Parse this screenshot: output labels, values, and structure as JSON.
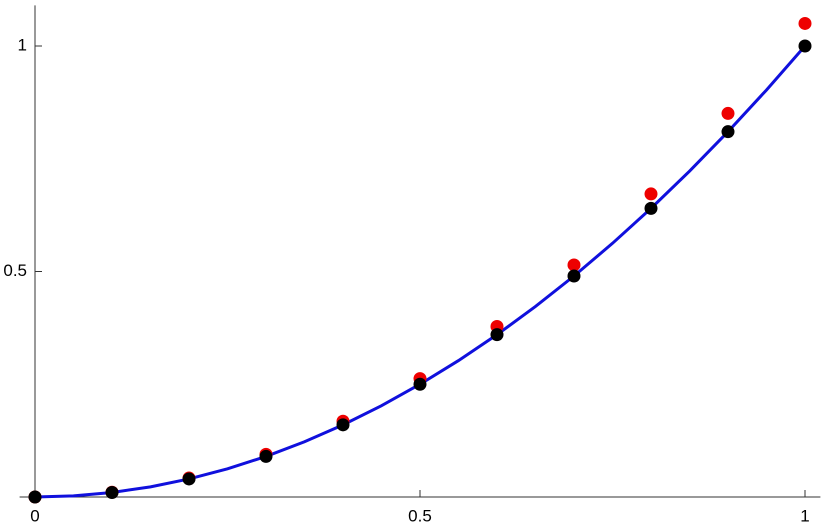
{
  "chart_data": {
    "type": "scatter",
    "x": [
      0,
      0.1,
      0.2,
      0.3,
      0.4,
      0.5,
      0.6,
      0.7,
      0.8,
      0.9,
      1.0
    ],
    "series": [
      {
        "color": "#ee0000",
        "values": [
          0,
          0.0105,
          0.042,
          0.0945,
          0.168,
          0.2625,
          0.378,
          0.5145,
          0.672,
          0.8505,
          1.05
        ]
      },
      {
        "color": "#000000",
        "values": [
          0,
          0.01,
          0.04,
          0.09,
          0.16,
          0.25,
          0.36,
          0.49,
          0.64,
          0.81,
          1.0
        ]
      }
    ],
    "curve": {
      "color": "#1010dd",
      "x": [
        0,
        0.05,
        0.1,
        0.15,
        0.2,
        0.25,
        0.3,
        0.35,
        0.4,
        0.45,
        0.5,
        0.55,
        0.6,
        0.65,
        0.7,
        0.75,
        0.8,
        0.85,
        0.9,
        0.95,
        1.0
      ],
      "values": [
        0,
        0.0025,
        0.01,
        0.0225,
        0.04,
        0.0625,
        0.09,
        0.1225,
        0.16,
        0.2025,
        0.25,
        0.3025,
        0.36,
        0.4225,
        0.49,
        0.5625,
        0.64,
        0.7225,
        0.81,
        0.9025,
        1.0
      ]
    },
    "xlim": [
      -0.02,
      1.02
    ],
    "ylim": [
      0,
      1.09
    ],
    "xticks": [
      0,
      0.5,
      1
    ],
    "yticks": [
      0.5,
      1
    ]
  }
}
